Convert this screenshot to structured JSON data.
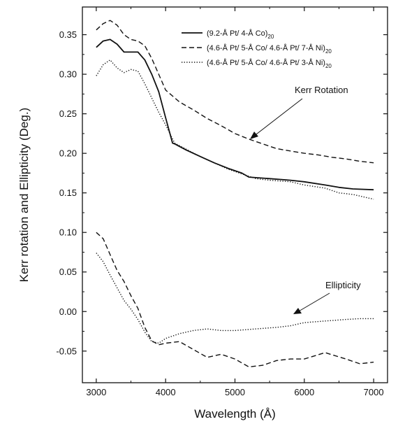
{
  "chart_data": {
    "type": "line",
    "title": "",
    "xlabel": "Wavelength (Å)",
    "ylabel": "Kerr rotation and Ellipticity (Deg.)",
    "xlim": [
      2800,
      7200
    ],
    "ylim": [
      -0.09,
      0.385
    ],
    "x_ticks": [
      3000,
      4000,
      5000,
      6000,
      7000
    ],
    "y_ticks": [
      -0.05,
      0.0,
      0.05,
      0.1,
      0.15,
      0.2,
      0.25,
      0.3,
      0.35
    ],
    "x_tick_labels": [
      "3000",
      "4000",
      "5000",
      "6000",
      "7000"
    ],
    "y_tick_labels": [
      "-0.05",
      "0.00",
      "0.05",
      "0.10",
      "0.15",
      "0.20",
      "0.25",
      "0.30",
      "0.35"
    ],
    "grid": false,
    "legend_position": "top-right",
    "legend": [
      {
        "main": "(9.2-Å Pt/ 4-Å Co)",
        "sub": "20",
        "style": "solid"
      },
      {
        "main": "(4.6-Å Pt/ 5-Å Co/ 4.6-Å Pt/ 7-Å Ni)",
        "sub": "20",
        "style": "dashed"
      },
      {
        "main": "(4.6-Å Pt/ 5-Å Co/ 4.6-Å Pt/ 3-Å Ni)",
        "sub": "20",
        "style": "dotted"
      }
    ],
    "annotations": [
      {
        "text": "Kerr Rotation",
        "points_to": [
          5050,
          0.22
        ]
      },
      {
        "text": "Ellipticity",
        "points_to": [
          5700,
          -0.01
        ]
      }
    ],
    "series": [
      {
        "style": "solid",
        "x": [
          3000,
          3100,
          3200,
          3300,
          3400,
          3600,
          3700,
          3800,
          3900,
          4000,
          4100,
          4130,
          4300,
          4500,
          4700,
          4900,
          5100,
          5200,
          5500,
          5800,
          6000,
          6300,
          6500,
          6700,
          7000
        ],
        "y": [
          0.334,
          0.342,
          0.344,
          0.338,
          0.328,
          0.328,
          0.318,
          0.3,
          0.278,
          0.245,
          0.213,
          0.212,
          0.204,
          0.196,
          0.188,
          0.181,
          0.175,
          0.17,
          0.168,
          0.166,
          0.164,
          0.16,
          0.157,
          0.155,
          0.154
        ]
      },
      {
        "style": "dashed",
        "x": [
          3000,
          3100,
          3200,
          3300,
          3400,
          3500,
          3600,
          3700,
          3800,
          3900,
          4000,
          4200,
          4400,
          4600,
          4800,
          5000,
          5200,
          5400,
          5600,
          5800,
          6000,
          6200,
          6400,
          6600,
          6800,
          7000
        ],
        "y": [
          0.356,
          0.364,
          0.368,
          0.362,
          0.35,
          0.344,
          0.342,
          0.336,
          0.32,
          0.3,
          0.28,
          0.265,
          0.255,
          0.244,
          0.235,
          0.225,
          0.218,
          0.212,
          0.206,
          0.203,
          0.2,
          0.198,
          0.195,
          0.193,
          0.19,
          0.188
        ]
      },
      {
        "style": "dotted",
        "x": [
          3000,
          3100,
          3200,
          3300,
          3400,
          3500,
          3600,
          3700,
          3800,
          3900,
          4000,
          4130,
          4300,
          4500,
          4700,
          4900,
          5100,
          5300,
          5500,
          5800,
          6000,
          6300,
          6500,
          6700,
          7000
        ],
        "y": [
          0.298,
          0.312,
          0.318,
          0.308,
          0.302,
          0.306,
          0.304,
          0.288,
          0.27,
          0.252,
          0.236,
          0.213,
          0.205,
          0.196,
          0.188,
          0.18,
          0.174,
          0.168,
          0.166,
          0.164,
          0.16,
          0.156,
          0.15,
          0.148,
          0.142
        ]
      },
      {
        "style": "dashed",
        "x": [
          3000,
          3100,
          3200,
          3300,
          3400,
          3500,
          3600,
          3700,
          3800,
          3900,
          4000,
          4200,
          4400,
          4600,
          4800,
          5000,
          5200,
          5400,
          5600,
          5800,
          6000,
          6300,
          6600,
          6800,
          7000
        ],
        "y": [
          0.1,
          0.092,
          0.072,
          0.052,
          0.038,
          0.02,
          0.004,
          -0.02,
          -0.037,
          -0.042,
          -0.04,
          -0.038,
          -0.048,
          -0.058,
          -0.054,
          -0.06,
          -0.07,
          -0.068,
          -0.062,
          -0.06,
          -0.06,
          -0.052,
          -0.06,
          -0.066,
          -0.064
        ]
      },
      {
        "style": "dotted",
        "x": [
          3000,
          3100,
          3200,
          3300,
          3400,
          3500,
          3600,
          3700,
          3800,
          3900,
          4000,
          4200,
          4400,
          4600,
          4800,
          5000,
          5300,
          5600,
          5800,
          6000,
          6300,
          6600,
          6800,
          7000
        ],
        "y": [
          0.074,
          0.063,
          0.046,
          0.03,
          0.014,
          0.003,
          -0.01,
          -0.026,
          -0.038,
          -0.04,
          -0.034,
          -0.028,
          -0.024,
          -0.022,
          -0.024,
          -0.024,
          -0.022,
          -0.02,
          -0.018,
          -0.014,
          -0.012,
          -0.01,
          -0.009,
          -0.009
        ]
      }
    ]
  }
}
